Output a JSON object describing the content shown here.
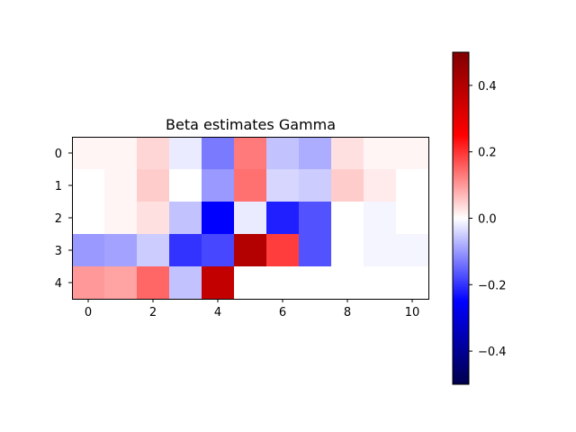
{
  "chart_data": {
    "type": "heatmap",
    "title": "Beta estimates Gamma",
    "xlabel": "",
    "ylabel": "",
    "colormap": "seismic",
    "vmin": -0.5,
    "vmax": 0.5,
    "rows": [
      0,
      1,
      2,
      3,
      4
    ],
    "cols": [
      0,
      1,
      2,
      3,
      4,
      5,
      6,
      7,
      8,
      9,
      10
    ],
    "x_ticks": [
      "0",
      "2",
      "4",
      "6",
      "8",
      "10"
    ],
    "y_ticks": [
      "0",
      "1",
      "2",
      "3",
      "4"
    ],
    "values": [
      [
        0.01,
        0.01,
        0.04,
        -0.02,
        -0.13,
        0.13,
        -0.06,
        -0.08,
        0.03,
        0.01,
        0.01
      ],
      [
        0.0,
        0.01,
        0.05,
        0.0,
        -0.1,
        0.14,
        -0.04,
        -0.05,
        0.05,
        0.02,
        0.0
      ],
      [
        0.0,
        0.01,
        0.03,
        -0.06,
        -0.25,
        -0.02,
        -0.22,
        -0.17,
        0.0,
        -0.01,
        0.0
      ],
      [
        -0.1,
        -0.09,
        -0.05,
        -0.2,
        -0.18,
        0.4,
        0.19,
        -0.17,
        0.0,
        -0.01,
        -0.01
      ],
      [
        0.1,
        0.09,
        0.15,
        -0.06,
        0.37,
        null,
        null,
        null,
        null,
        null,
        null
      ]
    ],
    "colorbar": {
      "ticks": [
        -0.4,
        -0.2,
        0.0,
        0.2,
        0.4
      ],
      "tick_labels": [
        "−0.4",
        "−0.2",
        "0.0",
        "0.2",
        "0.4"
      ]
    }
  }
}
